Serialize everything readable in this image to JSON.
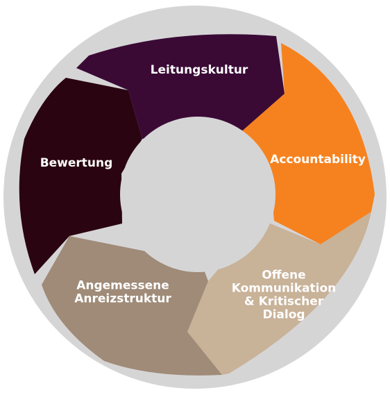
{
  "diagram": {
    "segments": [
      {
        "id": "leitungskultur",
        "lines": [
          "Leitungskultur"
        ],
        "color": "#3a0a35"
      },
      {
        "id": "accountability",
        "lines": [
          "Accountability"
        ],
        "color": "#f6821f"
      },
      {
        "id": "offene-kommunikation",
        "lines": [
          "Offene",
          "Kommunikation",
          "& Kritischer",
          "Dialog"
        ],
        "color": "#c8b298"
      },
      {
        "id": "angemessene-anreizstruktur",
        "lines": [
          "Angemessene",
          "Anreizstruktur"
        ],
        "color": "#9f8b78"
      },
      {
        "id": "bewertung",
        "lines": [
          "Bewertung"
        ],
        "color": "#2a0410"
      }
    ],
    "ring_color": "#d6d5d6"
  }
}
